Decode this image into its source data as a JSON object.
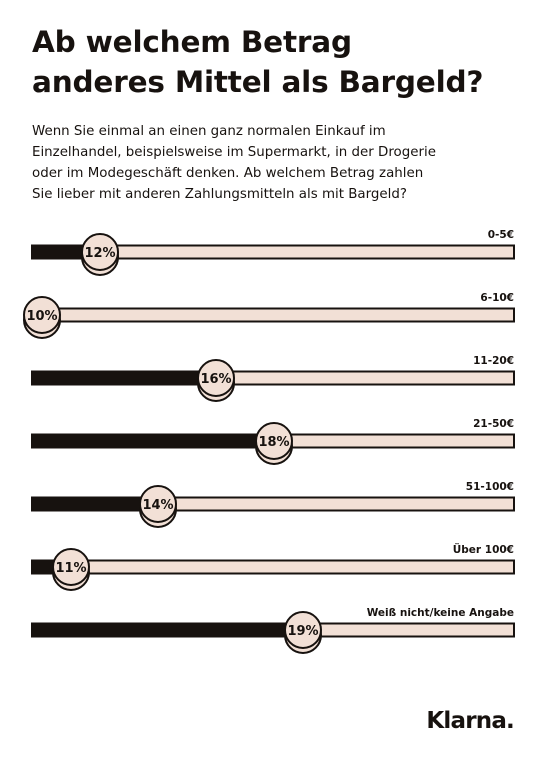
{
  "title_lines": [
    "Ab welchem Betrag",
    "anderes Mittel als Bargeld?"
  ],
  "subtitle_lines": [
    "Wenn Sie einmal an einen ganz normalen Einkauf im",
    "Einzelhandel, beispielsweise im Supermarkt, in der Drogerie",
    "oder im Modegeschäft denken. Ab welchem Betrag zahlen",
    "Sie lieber mit anderen Zahlungsmitteln als mit Bargeld?"
  ],
  "colors": {
    "bar_fill": "#17120f",
    "bar_track": "#f2e0d6",
    "coin": "#f2e0d6",
    "outline": "#17120f"
  },
  "chart_data": {
    "type": "bar",
    "orientation": "horizontal",
    "categories": [
      "0-5€",
      "6-10€",
      "11-20€",
      "21-50€",
      "51-100€",
      "Über 100€",
      "Weiß nicht/keine Angabe"
    ],
    "values": [
      12,
      10,
      16,
      18,
      14,
      11,
      19
    ],
    "value_labels": [
      "12%",
      "10%",
      "16%",
      "18%",
      "14%",
      "11%",
      "19%"
    ],
    "unit": "%",
    "marker": "coin"
  },
  "brand": {
    "logo_text": "Klarna."
  }
}
